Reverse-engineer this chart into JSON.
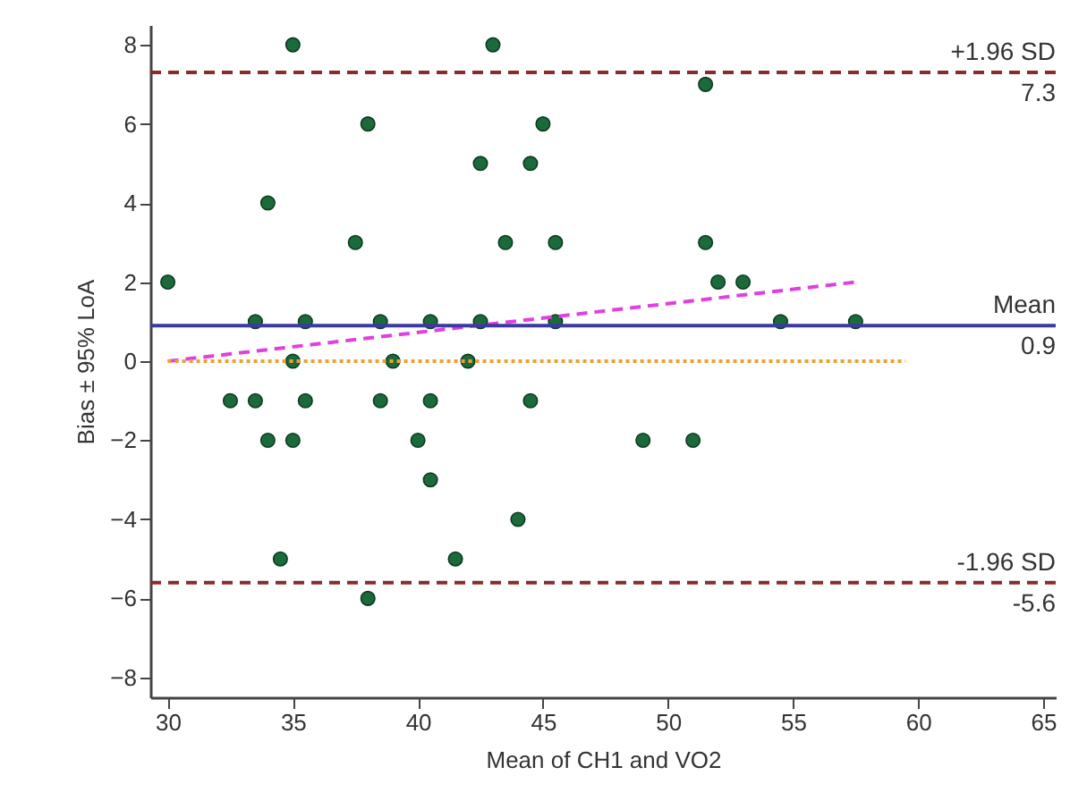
{
  "chart_data": {
    "type": "scatter",
    "xlabel": "Mean of CH1 and VO2",
    "ylabel": "Bias ± 95% LoA",
    "xlim": [
      29.3,
      65.5
    ],
    "xticks": [
      30,
      35,
      40,
      45,
      50,
      55,
      60,
      65
    ],
    "ylim": [
      -8.5,
      8.5
    ],
    "yticks": [
      -8,
      -6,
      -4,
      -2,
      0,
      2,
      4,
      6,
      8
    ],
    "grid": false,
    "marker": "circle",
    "series": [
      {
        "color": "#1b6b3a",
        "x": [
          30,
          33.5,
          35,
          35,
          34,
          35.5,
          32.5,
          33.5,
          34,
          35,
          35.5,
          34.5,
          37.5,
          38,
          38.5,
          38.5,
          39,
          38,
          40,
          40.5,
          40.5,
          40.5,
          41.5,
          42,
          42.5,
          42.5,
          43,
          43.5,
          44,
          44.5,
          44.5,
          45,
          45.5,
          45.5,
          49,
          51,
          51.5,
          51.5,
          52,
          53,
          54.5,
          57.5
        ],
        "values": [
          2,
          1,
          8,
          0,
          4,
          1,
          -1,
          -1,
          -2,
          -2,
          -1,
          -5,
          3,
          6,
          1,
          -1,
          0,
          -6,
          -2,
          1,
          -1,
          -3,
          -5,
          0,
          1,
          5,
          8,
          3,
          -4,
          5,
          -1,
          6,
          3,
          1,
          -2,
          -2,
          7,
          3,
          2,
          2,
          1,
          1
        ]
      },
      {
        "type": "line",
        "color": "#e040e0",
        "line_style": "dashed",
        "marker": "none",
        "x": [
          30,
          57.5
        ],
        "values": [
          0,
          2.0
        ]
      },
      {
        "type": "line",
        "color": "#f0a030",
        "line_style": "dotted",
        "marker": "none",
        "x": [
          30,
          59.5
        ],
        "values": [
          0,
          0
        ]
      }
    ],
    "ref_lines": [
      {
        "axis": "y",
        "value": 7.3,
        "label": "+1.96 SD",
        "color": "#8b2a2a",
        "line_style": "dashed"
      },
      {
        "axis": "y",
        "value": 0.9,
        "label": "Mean",
        "color": "#3a3aa0",
        "line_style": "solid"
      },
      {
        "axis": "y",
        "value": -5.6,
        "label": "-1.96 SD",
        "color": "#8b2a2a",
        "line_style": "dashed"
      }
    ],
    "annotations": [
      {
        "text": "7.3",
        "y": 7.3
      },
      {
        "text": "0.9",
        "y": 0.9
      },
      {
        "text": "-5.6",
        "y": -5.6
      }
    ]
  }
}
